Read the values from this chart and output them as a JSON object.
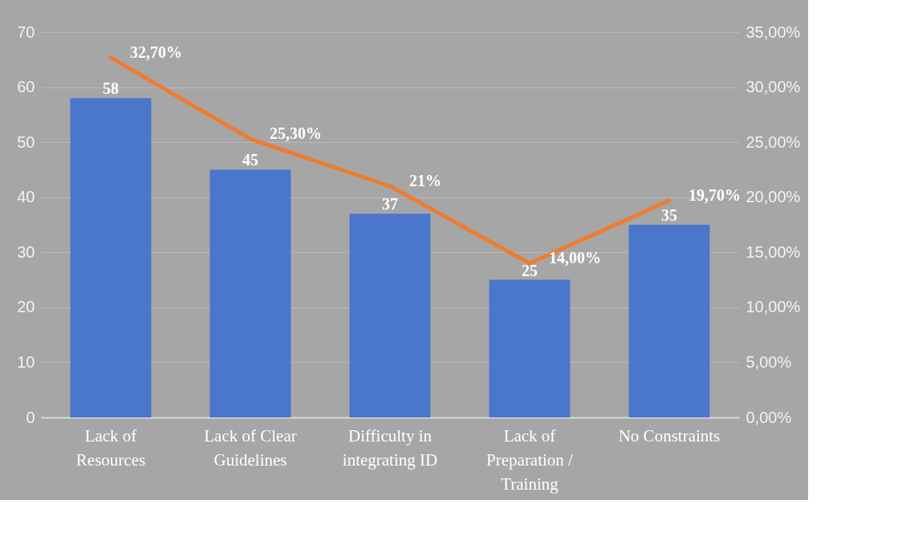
{
  "chart_data": {
    "type": "bar",
    "categories": [
      "Lack of Resources",
      "Lack of Clear Guidelines",
      "Difficulty in integrating ID",
      "Lack of Preparation / Training",
      "No Constraints"
    ],
    "series": [
      {
        "color": "#4a76cc",
        "values": [
          58,
          45,
          37,
          25,
          35
        ],
        "value_labels": [
          "58",
          "45",
          "37",
          "25",
          "35"
        ]
      },
      {
        "type": "line",
        "axis": "y2",
        "color": "#ed7d31",
        "values": [
          32.7,
          25.3,
          21,
          14,
          19.7
        ],
        "value_labels": [
          "32,70%",
          "25,30%",
          "21%",
          "14,00%",
          "19,70%"
        ]
      }
    ],
    "ylim": [
      0,
      70
    ],
    "yticks": [
      0,
      10,
      20,
      30,
      40,
      50,
      60,
      70
    ],
    "y2lim": [
      0,
      35
    ],
    "y2ticks": [
      {
        "value": 0,
        "label": "0,00%"
      },
      {
        "value": 5,
        "label": "5,00%"
      },
      {
        "value": 10,
        "label": "10,00%"
      },
      {
        "value": 15,
        "label": "15,00%"
      },
      {
        "value": 20,
        "label": "20,00%"
      },
      {
        "value": 25,
        "label": "25,00%"
      },
      {
        "value": 30,
        "label": "30,00%"
      },
      {
        "value": 35,
        "label": "35,00%"
      }
    ],
    "grid": "y",
    "marker": "none",
    "line_style": "solid"
  }
}
